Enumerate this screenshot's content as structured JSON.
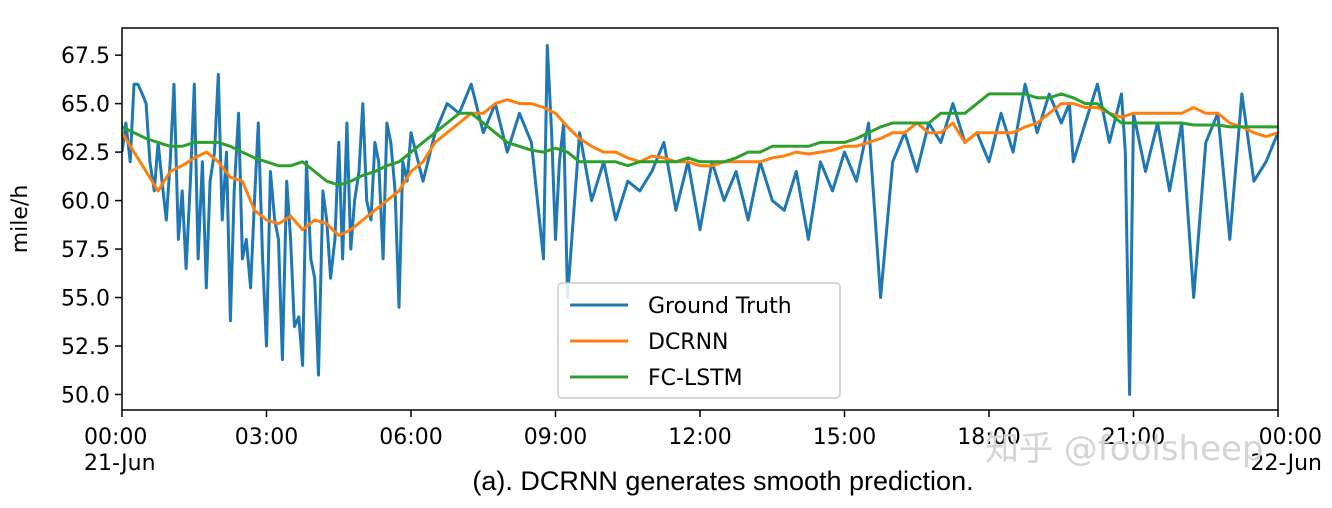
{
  "caption": "(a). DCRNN generates smooth prediction.",
  "watermark": "知乎 @foolsheep",
  "chart_data": {
    "type": "line",
    "title": "",
    "xlabel": "",
    "ylabel": "mile/h",
    "xlim": [
      0,
      24
    ],
    "ylim": [
      49.2,
      68.9
    ],
    "grid": false,
    "legend_position": "lower-center",
    "y_ticks": [
      50.0,
      52.5,
      55.0,
      57.5,
      60.0,
      62.5,
      65.0,
      67.5
    ],
    "y_tick_labels": [
      "50.0",
      "52.5",
      "55.0",
      "57.5",
      "60.0",
      "62.5",
      "65.0",
      "67.5"
    ],
    "x_ticks": [
      0,
      3,
      6,
      9,
      12,
      15,
      18,
      21,
      24
    ],
    "x_tick_labels": [
      [
        "00:00",
        "21-Jun"
      ],
      [
        "03:00"
      ],
      [
        "06:00"
      ],
      [
        "09:00"
      ],
      [
        "12:00"
      ],
      [
        "15:00"
      ],
      [
        "18:00"
      ],
      [
        "21:00"
      ],
      [
        "00:00",
        "22-Jun"
      ]
    ],
    "x_unit": "hours since 00:00 21-Jun",
    "series": [
      {
        "name": "Ground Truth",
        "color": "#1f77b4",
        "x": [
          0.0,
          0.08,
          0.17,
          0.25,
          0.33,
          0.42,
          0.5,
          0.58,
          0.67,
          0.75,
          0.83,
          0.92,
          1.0,
          1.08,
          1.17,
          1.25,
          1.33,
          1.42,
          1.5,
          1.58,
          1.67,
          1.75,
          1.83,
          1.92,
          2.0,
          2.08,
          2.17,
          2.25,
          2.33,
          2.42,
          2.5,
          2.58,
          2.67,
          2.75,
          2.83,
          2.92,
          3.0,
          3.08,
          3.17,
          3.25,
          3.33,
          3.42,
          3.5,
          3.58,
          3.67,
          3.75,
          3.83,
          3.92,
          4.0,
          4.08,
          4.17,
          4.25,
          4.33,
          4.42,
          4.5,
          4.58,
          4.67,
          4.75,
          4.83,
          4.92,
          5.0,
          5.08,
          5.17,
          5.25,
          5.33,
          5.42,
          5.5,
          5.58,
          5.67,
          5.75,
          5.83,
          5.92,
          6.0,
          6.25,
          6.5,
          6.75,
          7.0,
          7.25,
          7.5,
          7.75,
          8.0,
          8.25,
          8.5,
          8.75,
          8.83,
          8.92,
          9.0,
          9.08,
          9.17,
          9.25,
          9.5,
          9.75,
          10.0,
          10.25,
          10.5,
          10.75,
          11.0,
          11.25,
          11.5,
          11.75,
          12.0,
          12.25,
          12.5,
          12.75,
          13.0,
          13.25,
          13.5,
          13.75,
          14.0,
          14.25,
          14.5,
          14.75,
          15.0,
          15.25,
          15.5,
          15.75,
          16.0,
          16.25,
          16.5,
          16.75,
          17.0,
          17.25,
          17.5,
          17.75,
          18.0,
          18.25,
          18.5,
          18.75,
          19.0,
          19.25,
          19.5,
          19.67,
          19.75,
          20.0,
          20.25,
          20.5,
          20.75,
          20.83,
          20.92,
          21.0,
          21.25,
          21.5,
          21.75,
          22.0,
          22.25,
          22.5,
          22.75,
          23.0,
          23.25,
          23.5,
          23.75,
          24.0
        ],
        "y": [
          62.5,
          64.0,
          62.0,
          66.0,
          66.0,
          65.5,
          65.0,
          62.0,
          60.5,
          63.0,
          61.0,
          59.0,
          62.0,
          66.0,
          58.0,
          60.5,
          56.5,
          61.0,
          66.0,
          57.0,
          62.0,
          55.5,
          61.0,
          62.5,
          66.5,
          59.0,
          62.5,
          53.8,
          60.5,
          64.5,
          57.0,
          58.0,
          55.5,
          60.0,
          64.0,
          57.0,
          52.5,
          61.5,
          59.0,
          58.0,
          51.8,
          61.0,
          58.0,
          53.5,
          54.0,
          51.5,
          62.0,
          57.0,
          56.0,
          51.0,
          60.5,
          59.0,
          56.0,
          58.0,
          63.0,
          57.0,
          64.0,
          57.5,
          60.0,
          61.5,
          65.0,
          60.0,
          59.0,
          63.0,
          62.0,
          57.0,
          64.0,
          63.0,
          60.5,
          54.5,
          62.0,
          61.0,
          63.5,
          61.0,
          63.5,
          65.0,
          64.5,
          66.0,
          63.5,
          65.0,
          62.5,
          64.5,
          63.0,
          57.0,
          68.0,
          63.5,
          58.0,
          62.0,
          64.0,
          55.0,
          63.5,
          60.0,
          62.0,
          59.0,
          61.0,
          60.5,
          61.5,
          63.0,
          59.5,
          62.0,
          58.5,
          62.0,
          60.0,
          61.5,
          59.0,
          62.0,
          60.0,
          59.5,
          61.5,
          58.0,
          62.0,
          60.5,
          62.5,
          61.0,
          64.0,
          55.0,
          62.0,
          63.5,
          61.5,
          64.0,
          63.0,
          65.0,
          63.0,
          63.5,
          62.0,
          64.5,
          62.5,
          66.0,
          63.5,
          65.5,
          64.0,
          65.0,
          62.0,
          64.0,
          66.0,
          63.0,
          65.5,
          62.5,
          50.0,
          64.5,
          61.5,
          64.0,
          60.5,
          64.0,
          55.0,
          63.0,
          64.5,
          58.0,
          65.5,
          61.0,
          62.0,
          63.5
        ]
      },
      {
        "name": "DCRNN",
        "color": "#ff7f0e",
        "x": [
          0.0,
          0.25,
          0.5,
          0.75,
          1.0,
          1.25,
          1.5,
          1.75,
          2.0,
          2.25,
          2.5,
          2.75,
          3.0,
          3.25,
          3.5,
          3.75,
          4.0,
          4.25,
          4.5,
          4.75,
          5.0,
          5.25,
          5.5,
          5.75,
          6.0,
          6.25,
          6.5,
          6.75,
          7.0,
          7.25,
          7.5,
          7.75,
          8.0,
          8.25,
          8.5,
          8.75,
          9.0,
          9.25,
          9.5,
          9.75,
          10.0,
          10.25,
          10.5,
          10.75,
          11.0,
          11.25,
          11.5,
          11.75,
          12.0,
          12.25,
          12.5,
          12.75,
          13.0,
          13.25,
          13.5,
          13.75,
          14.0,
          14.25,
          14.5,
          14.75,
          15.0,
          15.25,
          15.5,
          15.75,
          16.0,
          16.25,
          16.5,
          16.75,
          17.0,
          17.25,
          17.5,
          17.75,
          18.0,
          18.25,
          18.5,
          18.75,
          19.0,
          19.25,
          19.5,
          19.75,
          20.0,
          20.25,
          20.5,
          20.75,
          21.0,
          21.25,
          21.5,
          21.75,
          22.0,
          22.25,
          22.5,
          22.75,
          23.0,
          23.25,
          23.5,
          23.75,
          24.0
        ],
        "y": [
          63.5,
          62.5,
          61.5,
          60.5,
          61.5,
          61.8,
          62.2,
          62.5,
          62.0,
          61.2,
          61.0,
          59.5,
          59.0,
          58.8,
          59.2,
          58.5,
          59.0,
          58.8,
          58.2,
          58.5,
          59.0,
          59.5,
          60.0,
          60.5,
          61.5,
          62.0,
          63.0,
          63.5,
          64.0,
          64.5,
          64.5,
          65.0,
          65.2,
          65.0,
          65.0,
          64.8,
          64.5,
          63.8,
          63.2,
          62.8,
          62.5,
          62.5,
          62.2,
          62.0,
          62.3,
          62.2,
          62.0,
          62.0,
          61.8,
          61.8,
          62.0,
          62.0,
          62.0,
          62.0,
          62.2,
          62.3,
          62.5,
          62.4,
          62.5,
          62.6,
          62.8,
          62.8,
          63.0,
          63.2,
          63.5,
          63.5,
          64.0,
          63.5,
          63.5,
          64.0,
          63.0,
          63.5,
          63.5,
          63.5,
          63.5,
          63.8,
          64.0,
          64.5,
          65.0,
          65.0,
          64.8,
          64.8,
          64.5,
          64.3,
          64.5,
          64.5,
          64.5,
          64.5,
          64.5,
          64.8,
          64.5,
          64.5,
          64.0,
          63.8,
          63.5,
          63.3,
          63.5
        ]
      },
      {
        "name": "FC-LSTM",
        "color": "#2ca02c",
        "x": [
          0.0,
          0.25,
          0.5,
          0.75,
          1.0,
          1.25,
          1.5,
          1.75,
          2.0,
          2.25,
          2.5,
          2.75,
          3.0,
          3.25,
          3.5,
          3.75,
          4.0,
          4.25,
          4.5,
          4.75,
          5.0,
          5.25,
          5.5,
          5.75,
          6.0,
          6.25,
          6.5,
          6.75,
          7.0,
          7.25,
          7.5,
          7.75,
          8.0,
          8.25,
          8.5,
          8.75,
          9.0,
          9.25,
          9.5,
          9.75,
          10.0,
          10.25,
          10.5,
          10.75,
          11.0,
          11.25,
          11.5,
          11.75,
          12.0,
          12.25,
          12.5,
          12.75,
          13.0,
          13.25,
          13.5,
          13.75,
          14.0,
          14.25,
          14.5,
          14.75,
          15.0,
          15.25,
          15.5,
          15.75,
          16.0,
          16.25,
          16.5,
          16.75,
          17.0,
          17.25,
          17.5,
          17.75,
          18.0,
          18.25,
          18.5,
          18.75,
          19.0,
          19.25,
          19.5,
          19.75,
          20.0,
          20.25,
          20.5,
          20.75,
          21.0,
          21.25,
          21.5,
          21.75,
          22.0,
          22.25,
          22.5,
          22.75,
          23.0,
          23.25,
          23.5,
          23.75,
          24.0
        ],
        "y": [
          63.8,
          63.5,
          63.2,
          63.0,
          62.8,
          62.8,
          63.0,
          63.0,
          63.0,
          62.8,
          62.5,
          62.2,
          62.0,
          61.8,
          61.8,
          62.0,
          61.5,
          61.0,
          60.8,
          61.0,
          61.3,
          61.5,
          61.8,
          62.0,
          62.5,
          63.0,
          63.5,
          64.0,
          64.5,
          64.5,
          64.0,
          63.5,
          63.0,
          62.8,
          62.6,
          62.5,
          62.7,
          62.5,
          62.0,
          62.0,
          62.0,
          62.0,
          61.8,
          62.0,
          62.0,
          62.0,
          62.0,
          62.2,
          62.0,
          62.0,
          62.0,
          62.2,
          62.5,
          62.5,
          62.8,
          62.8,
          62.8,
          62.8,
          63.0,
          63.0,
          63.0,
          63.2,
          63.5,
          63.8,
          64.0,
          64.0,
          64.0,
          64.0,
          64.5,
          64.5,
          64.5,
          65.0,
          65.5,
          65.5,
          65.5,
          65.5,
          65.3,
          65.3,
          65.5,
          65.3,
          65.0,
          65.0,
          64.5,
          64.0,
          64.0,
          64.0,
          64.0,
          64.0,
          64.0,
          63.9,
          63.9,
          63.9,
          63.8,
          63.8,
          63.8,
          63.8,
          63.8
        ]
      }
    ]
  }
}
